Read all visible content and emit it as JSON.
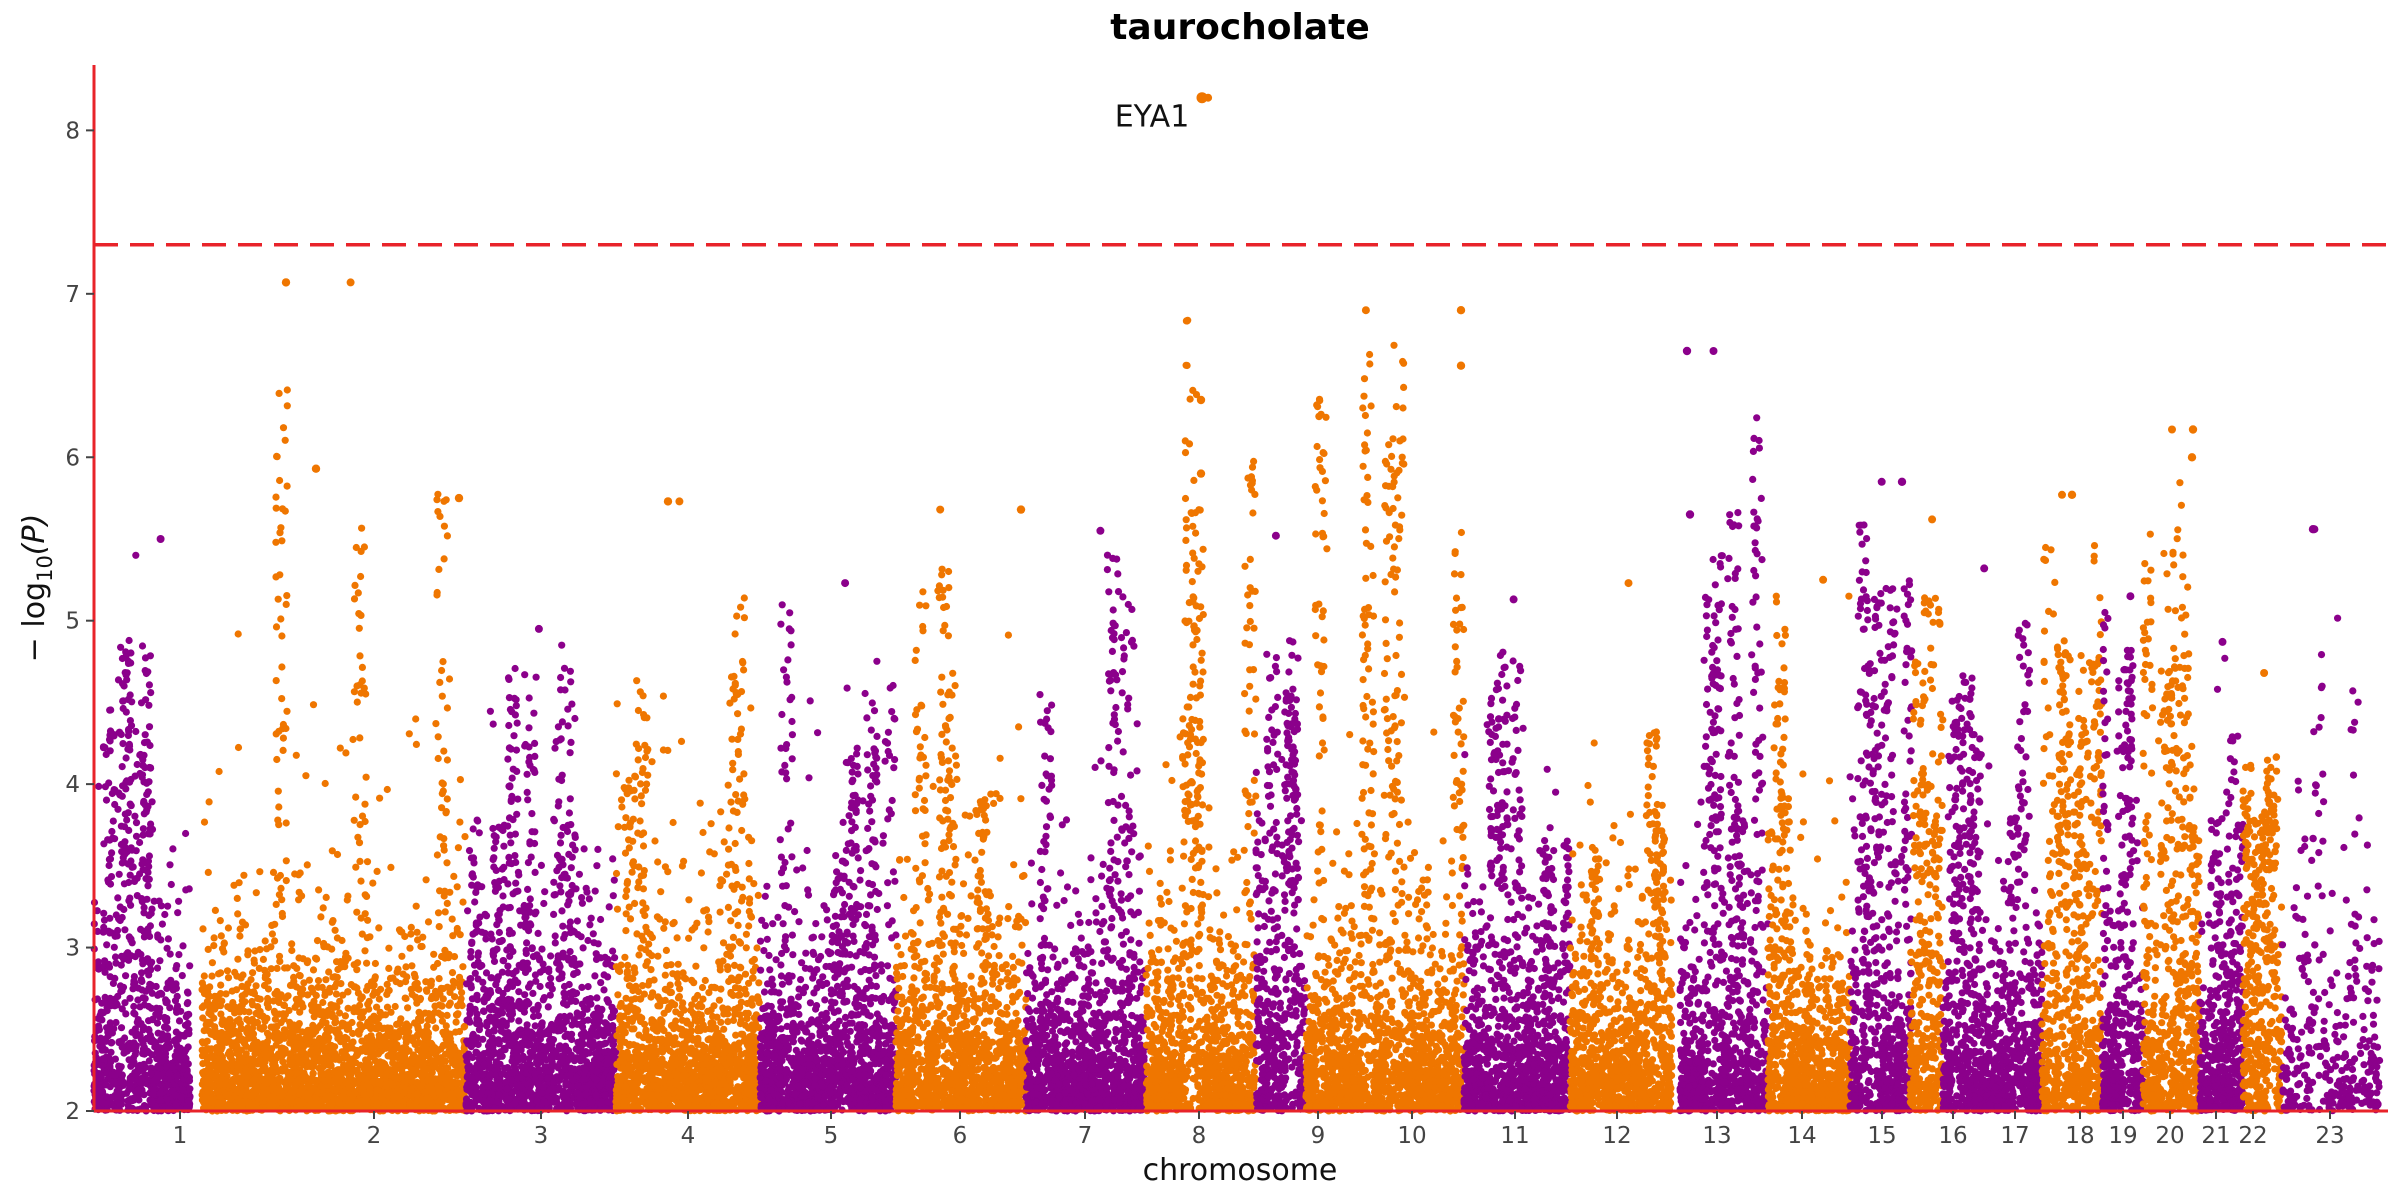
{
  "chart_data": {
    "type": "scatter",
    "title": "taurocholate",
    "xlabel": "chromosome",
    "ylabel_main": "− log",
    "ylabel_sub": "10",
    "ylabel_tail": "(P)",
    "ylim": [
      2,
      8.4
    ],
    "yticks": [
      2,
      3,
      4,
      5,
      6,
      7,
      8
    ],
    "threshold": 7.3,
    "grid": false,
    "legend": "none",
    "colors": {
      "odd": "#8b008b",
      "even": "#ef7600",
      "axis": "#e8232a",
      "threshold": "#e8232a"
    },
    "chromosomes": [
      "1",
      "2",
      "3",
      "4",
      "5",
      "6",
      "7",
      "8",
      "9",
      "10",
      "11",
      "12",
      "13",
      "14",
      "15",
      "16",
      "17",
      "18",
      "19",
      "20",
      "21",
      "22",
      "23"
    ],
    "chromosome_max_log10p": [
      5.5,
      7.07,
      4.95,
      5.73,
      5.23,
      5.68,
      5.55,
      8.2,
      5.52,
      6.9,
      5.13,
      5.23,
      6.65,
      5.25,
      5.85,
      5.62,
      5.32,
      5.77,
      5.15,
      6.17,
      4.87,
      4.68,
      5.56
    ],
    "top_hit": {
      "label": "EYA1",
      "chromosome": "8",
      "log10p": 8.2
    },
    "notable_points": [
      {
        "chromosome": "2",
        "log10p": 7.07
      },
      {
        "chromosome": "2",
        "log10p": 5.93
      },
      {
        "chromosome": "2",
        "log10p": 5.75
      },
      {
        "chromosome": "4",
        "log10p": 5.73
      },
      {
        "chromosome": "6",
        "log10p": 5.68
      },
      {
        "chromosome": "8",
        "log10p": 6.35
      },
      {
        "chromosome": "8",
        "log10p": 5.9
      },
      {
        "chromosome": "10",
        "log10p": 6.9
      },
      {
        "chromosome": "10",
        "log10p": 6.56
      },
      {
        "chromosome": "13",
        "log10p": 6.65
      },
      {
        "chromosome": "13",
        "log10p": 5.65
      },
      {
        "chromosome": "15",
        "log10p": 5.85
      },
      {
        "chromosome": "18",
        "log10p": 5.77
      },
      {
        "chromosome": "20",
        "log10p": 6.17
      },
      {
        "chromosome": "20",
        "log10p": 6.0
      },
      {
        "chromosome": "23",
        "log10p": 5.56
      }
    ]
  }
}
